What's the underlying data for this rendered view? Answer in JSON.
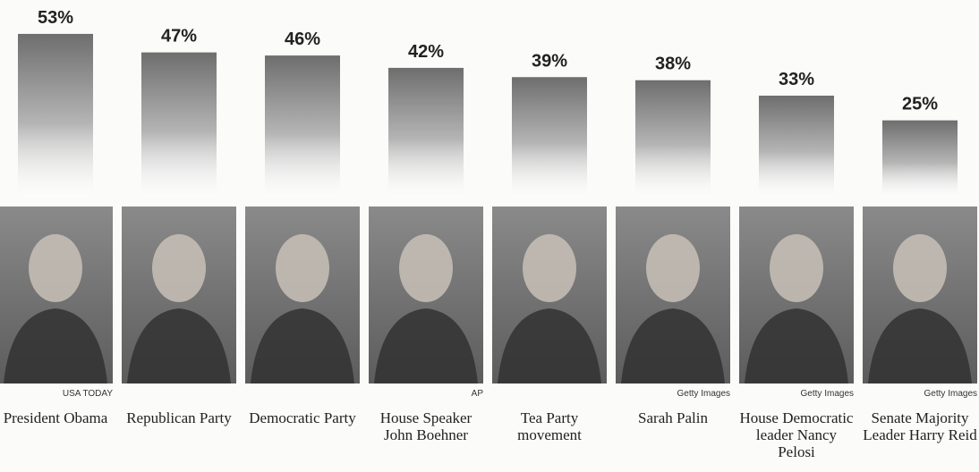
{
  "chart_data": {
    "type": "bar",
    "categories": [
      "President Obama",
      "Republican Party",
      "Democratic Party",
      "House Speaker John Boehner",
      "Tea Party movement",
      "Sarah Palin",
      "House Democratic leader Nancy Pelosi",
      "Senate Majority Leader Harry Reid"
    ],
    "values": [
      53,
      47,
      46,
      42,
      39,
      38,
      33,
      25
    ],
    "value_labels": [
      "53%",
      "47%",
      "46%",
      "42%",
      "39%",
      "38%",
      "33%",
      "25%"
    ],
    "photo_credits": [
      "USA TODAY",
      null,
      null,
      "AP",
      null,
      "Getty Images",
      "Getty Images",
      "Getty Images"
    ],
    "color": "#6e6e6e",
    "ylim": [
      0,
      55
    ]
  }
}
